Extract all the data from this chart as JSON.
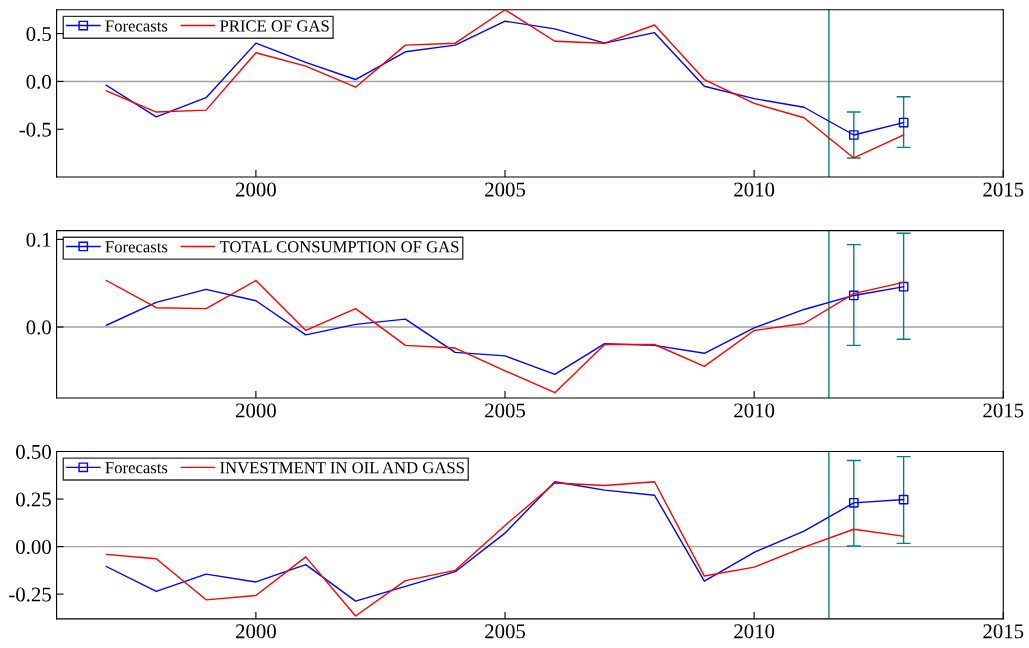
{
  "chart_data": [
    {
      "type": "line",
      "x": [
        1997,
        1998,
        1999,
        2000,
        2001,
        2002,
        2003,
        2004,
        2005,
        2006,
        2007,
        2008,
        2009,
        2010,
        2011,
        2012,
        2013
      ],
      "series": [
        {
          "color": "#0000ff",
          "values": [
            -0.04,
            -0.37,
            -0.17,
            0.4,
            0.2,
            0.02,
            0.31,
            0.38,
            0.63,
            0.55,
            0.4,
            0.51,
            -0.05,
            -0.18,
            -0.27,
            -0.56,
            -0.43
          ]
        },
        {
          "type": "scatter",
          "name": "Forecasts",
          "color": "#0000ff",
          "marker": "square",
          "values": [
            null,
            null,
            null,
            null,
            null,
            null,
            null,
            null,
            null,
            null,
            null,
            null,
            null,
            null,
            null,
            -0.56,
            -0.43
          ],
          "errors": [
            null,
            null,
            null,
            null,
            null,
            null,
            null,
            null,
            null,
            null,
            null,
            null,
            null,
            null,
            null,
            [
              -0.8,
              -0.32
            ],
            [
              -0.69,
              -0.16
            ]
          ]
        },
        {
          "name": "PRICE OF GAS",
          "color": "#ff0000",
          "values": [
            -0.1,
            -0.32,
            -0.3,
            0.3,
            0.16,
            -0.06,
            0.38,
            0.4,
            0.75,
            0.42,
            0.4,
            0.59,
            0.02,
            -0.23,
            -0.38,
            -0.8,
            -0.56
          ]
        }
      ],
      "xlim": [
        1996,
        2015
      ],
      "xticks": [
        2000,
        2005,
        2010,
        2015
      ],
      "ylim": [
        -1.0,
        0.75
      ],
      "yticks": [
        {
          "value": -0.5,
          "label": "-0.5"
        },
        {
          "value": 0,
          "label": "0.0"
        },
        {
          "value": 0.5,
          "label": "0.5"
        }
      ],
      "ref_lines": [
        {
          "axis": "y",
          "value": 0,
          "color": "#a0a0a0"
        },
        {
          "axis": "x",
          "value": 2011.5,
          "color": "#008080"
        }
      ],
      "legend": "top left",
      "grid": false
    },
    {
      "type": "line",
      "x": [
        1997,
        1998,
        1999,
        2000,
        2001,
        2002,
        2003,
        2004,
        2005,
        2006,
        2007,
        2008,
        2009,
        2010,
        2011,
        2012,
        2013
      ],
      "series": [
        {
          "color": "#0000ff",
          "values": [
            0.002,
            0.028,
            0.043,
            0.03,
            -0.009,
            0.003,
            0.009,
            -0.029,
            -0.033,
            -0.054,
            -0.019,
            -0.021,
            -0.03,
            -0.001,
            0.02,
            0.036,
            0.046
          ]
        },
        {
          "type": "scatter",
          "name": "Forecasts",
          "color": "#0000ff",
          "marker": "square",
          "values": [
            null,
            null,
            null,
            null,
            null,
            null,
            null,
            null,
            null,
            null,
            null,
            null,
            null,
            null,
            null,
            0.036,
            0.046
          ],
          "errors": [
            null,
            null,
            null,
            null,
            null,
            null,
            null,
            null,
            null,
            null,
            null,
            null,
            null,
            null,
            null,
            [
              -0.021,
              0.094
            ],
            [
              -0.014,
              0.107
            ]
          ]
        },
        {
          "name": "TOTAL CONSUMPTION OF GAS",
          "color": "#ff0000",
          "values": [
            0.053,
            0.022,
            0.021,
            0.053,
            -0.004,
            0.021,
            -0.021,
            -0.024,
            -0.05,
            -0.075,
            -0.02,
            -0.02,
            -0.045,
            -0.004,
            0.004,
            0.038,
            0.051
          ]
        }
      ],
      "xlim": [
        1996,
        2015
      ],
      "xticks": [
        2000,
        2005,
        2010,
        2015
      ],
      "ylim": [
        -0.081,
        0.11
      ],
      "yticks": [
        {
          "value": 0,
          "label": "0.0"
        },
        {
          "value": 0.1,
          "label": "0.1"
        }
      ],
      "ref_lines": [
        {
          "axis": "y",
          "value": 0,
          "color": "#a0a0a0"
        },
        {
          "axis": "x",
          "value": 2011.5,
          "color": "#008080"
        }
      ],
      "legend": "top left",
      "grid": false
    },
    {
      "type": "line",
      "x": [
        1997,
        1998,
        1999,
        2000,
        2001,
        2002,
        2003,
        2004,
        2005,
        2006,
        2007,
        2008,
        2009,
        2010,
        2011,
        2012,
        2013
      ],
      "series": [
        {
          "color": "#0000ff",
          "values": [
            -0.105,
            -0.236,
            -0.145,
            -0.186,
            -0.095,
            -0.287,
            -0.209,
            -0.132,
            0.071,
            0.341,
            0.297,
            0.27,
            -0.182,
            -0.03,
            0.081,
            0.23,
            0.247
          ]
        },
        {
          "type": "scatter",
          "name": "Forecasts",
          "color": "#0000ff",
          "marker": "square",
          "values": [
            null,
            null,
            null,
            null,
            null,
            null,
            null,
            null,
            null,
            null,
            null,
            null,
            null,
            null,
            null,
            0.23,
            0.247
          ],
          "errors": [
            null,
            null,
            null,
            null,
            null,
            null,
            null,
            null,
            null,
            null,
            null,
            null,
            null,
            null,
            null,
            [
              0.003,
              0.453
            ],
            [
              0.017,
              0.473
            ]
          ]
        },
        {
          "name": "INVESTMENT IN OIL AND GASS",
          "color": "#ff0000",
          "values": [
            -0.041,
            -0.064,
            -0.28,
            -0.257,
            -0.054,
            -0.365,
            -0.179,
            -0.125,
            0.111,
            0.334,
            0.321,
            0.341,
            -0.155,
            -0.108,
            -0.003,
            0.091,
            0.054
          ]
        }
      ],
      "xlim": [
        1996,
        2015
      ],
      "xticks": [
        2000,
        2005,
        2010,
        2015
      ],
      "ylim": [
        -0.38,
        0.5
      ],
      "yticks": [
        {
          "value": -0.25,
          "label": "-0.25"
        },
        {
          "value": 0,
          "label": "0.00"
        },
        {
          "value": 0.25,
          "label": "0.25"
        },
        {
          "value": 0.5,
          "label": "0.50"
        }
      ],
      "ref_lines": [
        {
          "axis": "y",
          "value": 0,
          "color": "#a0a0a0"
        },
        {
          "axis": "x",
          "value": 2011.5,
          "color": "#008080"
        }
      ],
      "legend": "top left",
      "grid": false
    }
  ]
}
